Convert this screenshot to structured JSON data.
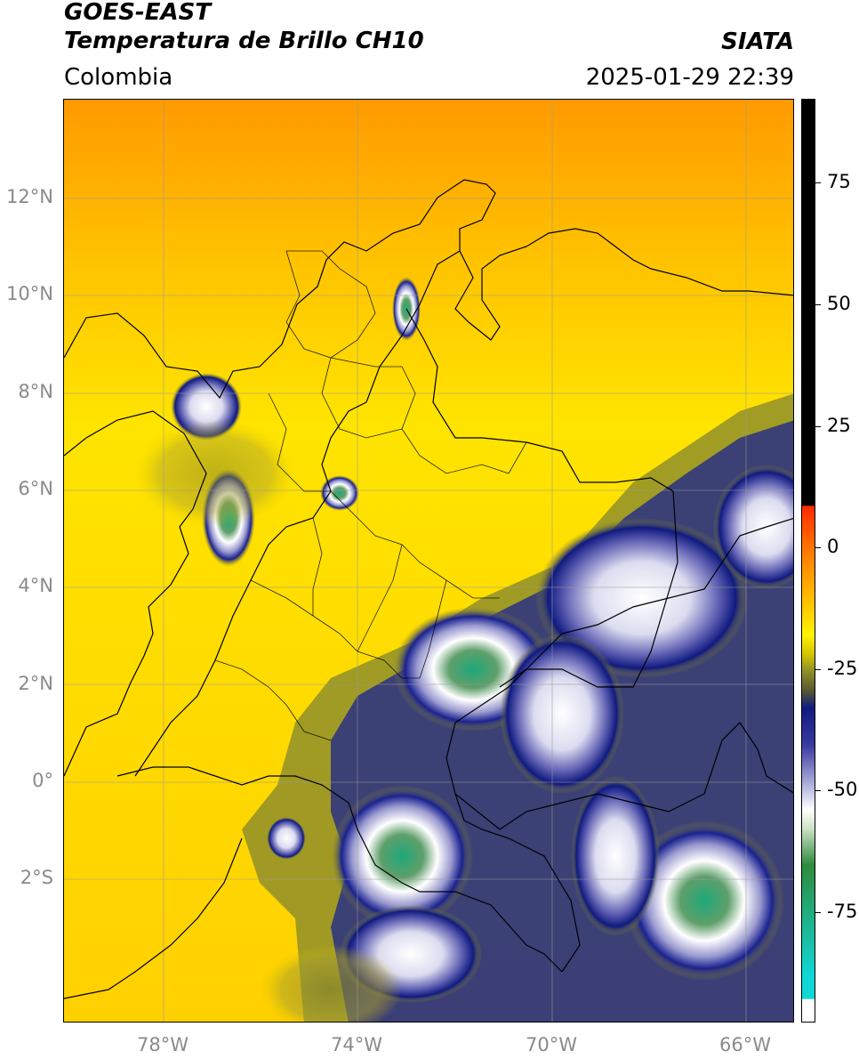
{
  "header": {
    "line1": "GOES-EAST",
    "line2": "Temperatura de Brillo CH10",
    "brand": "SIATA",
    "region": "Colombia",
    "datetime": "2025-01-29 22:39"
  },
  "map": {
    "lat_labels": [
      "12°N",
      "10°N",
      "8°N",
      "6°N",
      "4°N",
      "2°N",
      "0°",
      "2°S"
    ],
    "lon_labels": [
      "78°W",
      "74°W",
      "70°W",
      "66°W"
    ]
  },
  "colorbar": {
    "labels": [
      "75",
      "50",
      "25",
      "0",
      "-25",
      "-50",
      "-75"
    ],
    "colors": {
      "black": "#000000",
      "red": "#ff2a00",
      "orange": "#ff9a00",
      "yellow": "#fff200",
      "olive": "#8f8f2a",
      "navy": "#101a80",
      "white": "#ffffff",
      "green": "#2e8b3c",
      "teal": "#1fb28a",
      "cyan": "#11d6d6"
    }
  }
}
